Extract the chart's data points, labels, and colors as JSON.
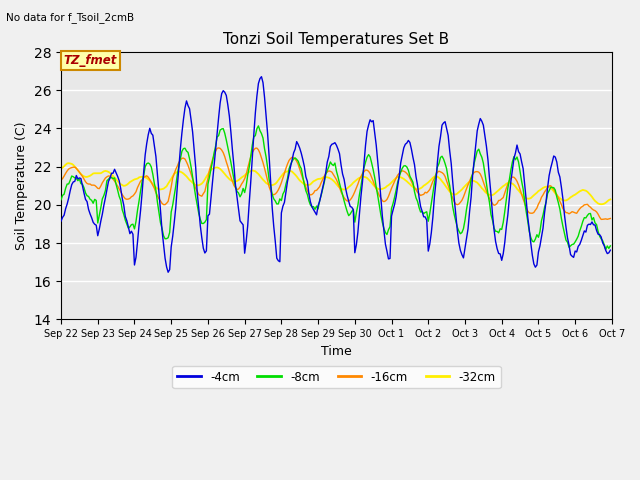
{
  "title": "Tonzi Soil Temperatures Set B",
  "suptitle": "No data for f_Tsoil_2cmB",
  "xlabel": "Time",
  "ylabel": "Soil Temperature (C)",
  "ylim": [
    14,
    28
  ],
  "yticks": [
    14,
    16,
    18,
    20,
    22,
    24,
    26,
    28
  ],
  "colors": {
    "4cm": "#0000dd",
    "8cm": "#00dd00",
    "16cm": "#ff8800",
    "32cm": "#ffee00"
  },
  "legend_labels": [
    "-4cm",
    "-8cm",
    "-16cm",
    "-32cm"
  ],
  "legend_colors": [
    "#0000dd",
    "#00dd00",
    "#ff8800",
    "#ffee00"
  ],
  "plot_bg_color": "#e8e8e8",
  "fig_bg_color": "#f0f0f0",
  "annotation_text": "TZ_fmet",
  "annotation_color": "#aa0000",
  "annotation_bg": "#ffffaa",
  "annotation_border": "#cc8800",
  "date_ticks": [
    "Sep 22",
    "Sep 23",
    "Sep 24",
    "Sep 25",
    "Sep 26",
    "Sep 27",
    "Sep 28",
    "Sep 29",
    "Sep 30",
    "Oct 1",
    "Oct 2",
    "Oct 3",
    "Oct 4",
    "Oct 5",
    "Oct 6",
    "Oct 7"
  ],
  "n_days": 15,
  "pts_per_day": 24
}
